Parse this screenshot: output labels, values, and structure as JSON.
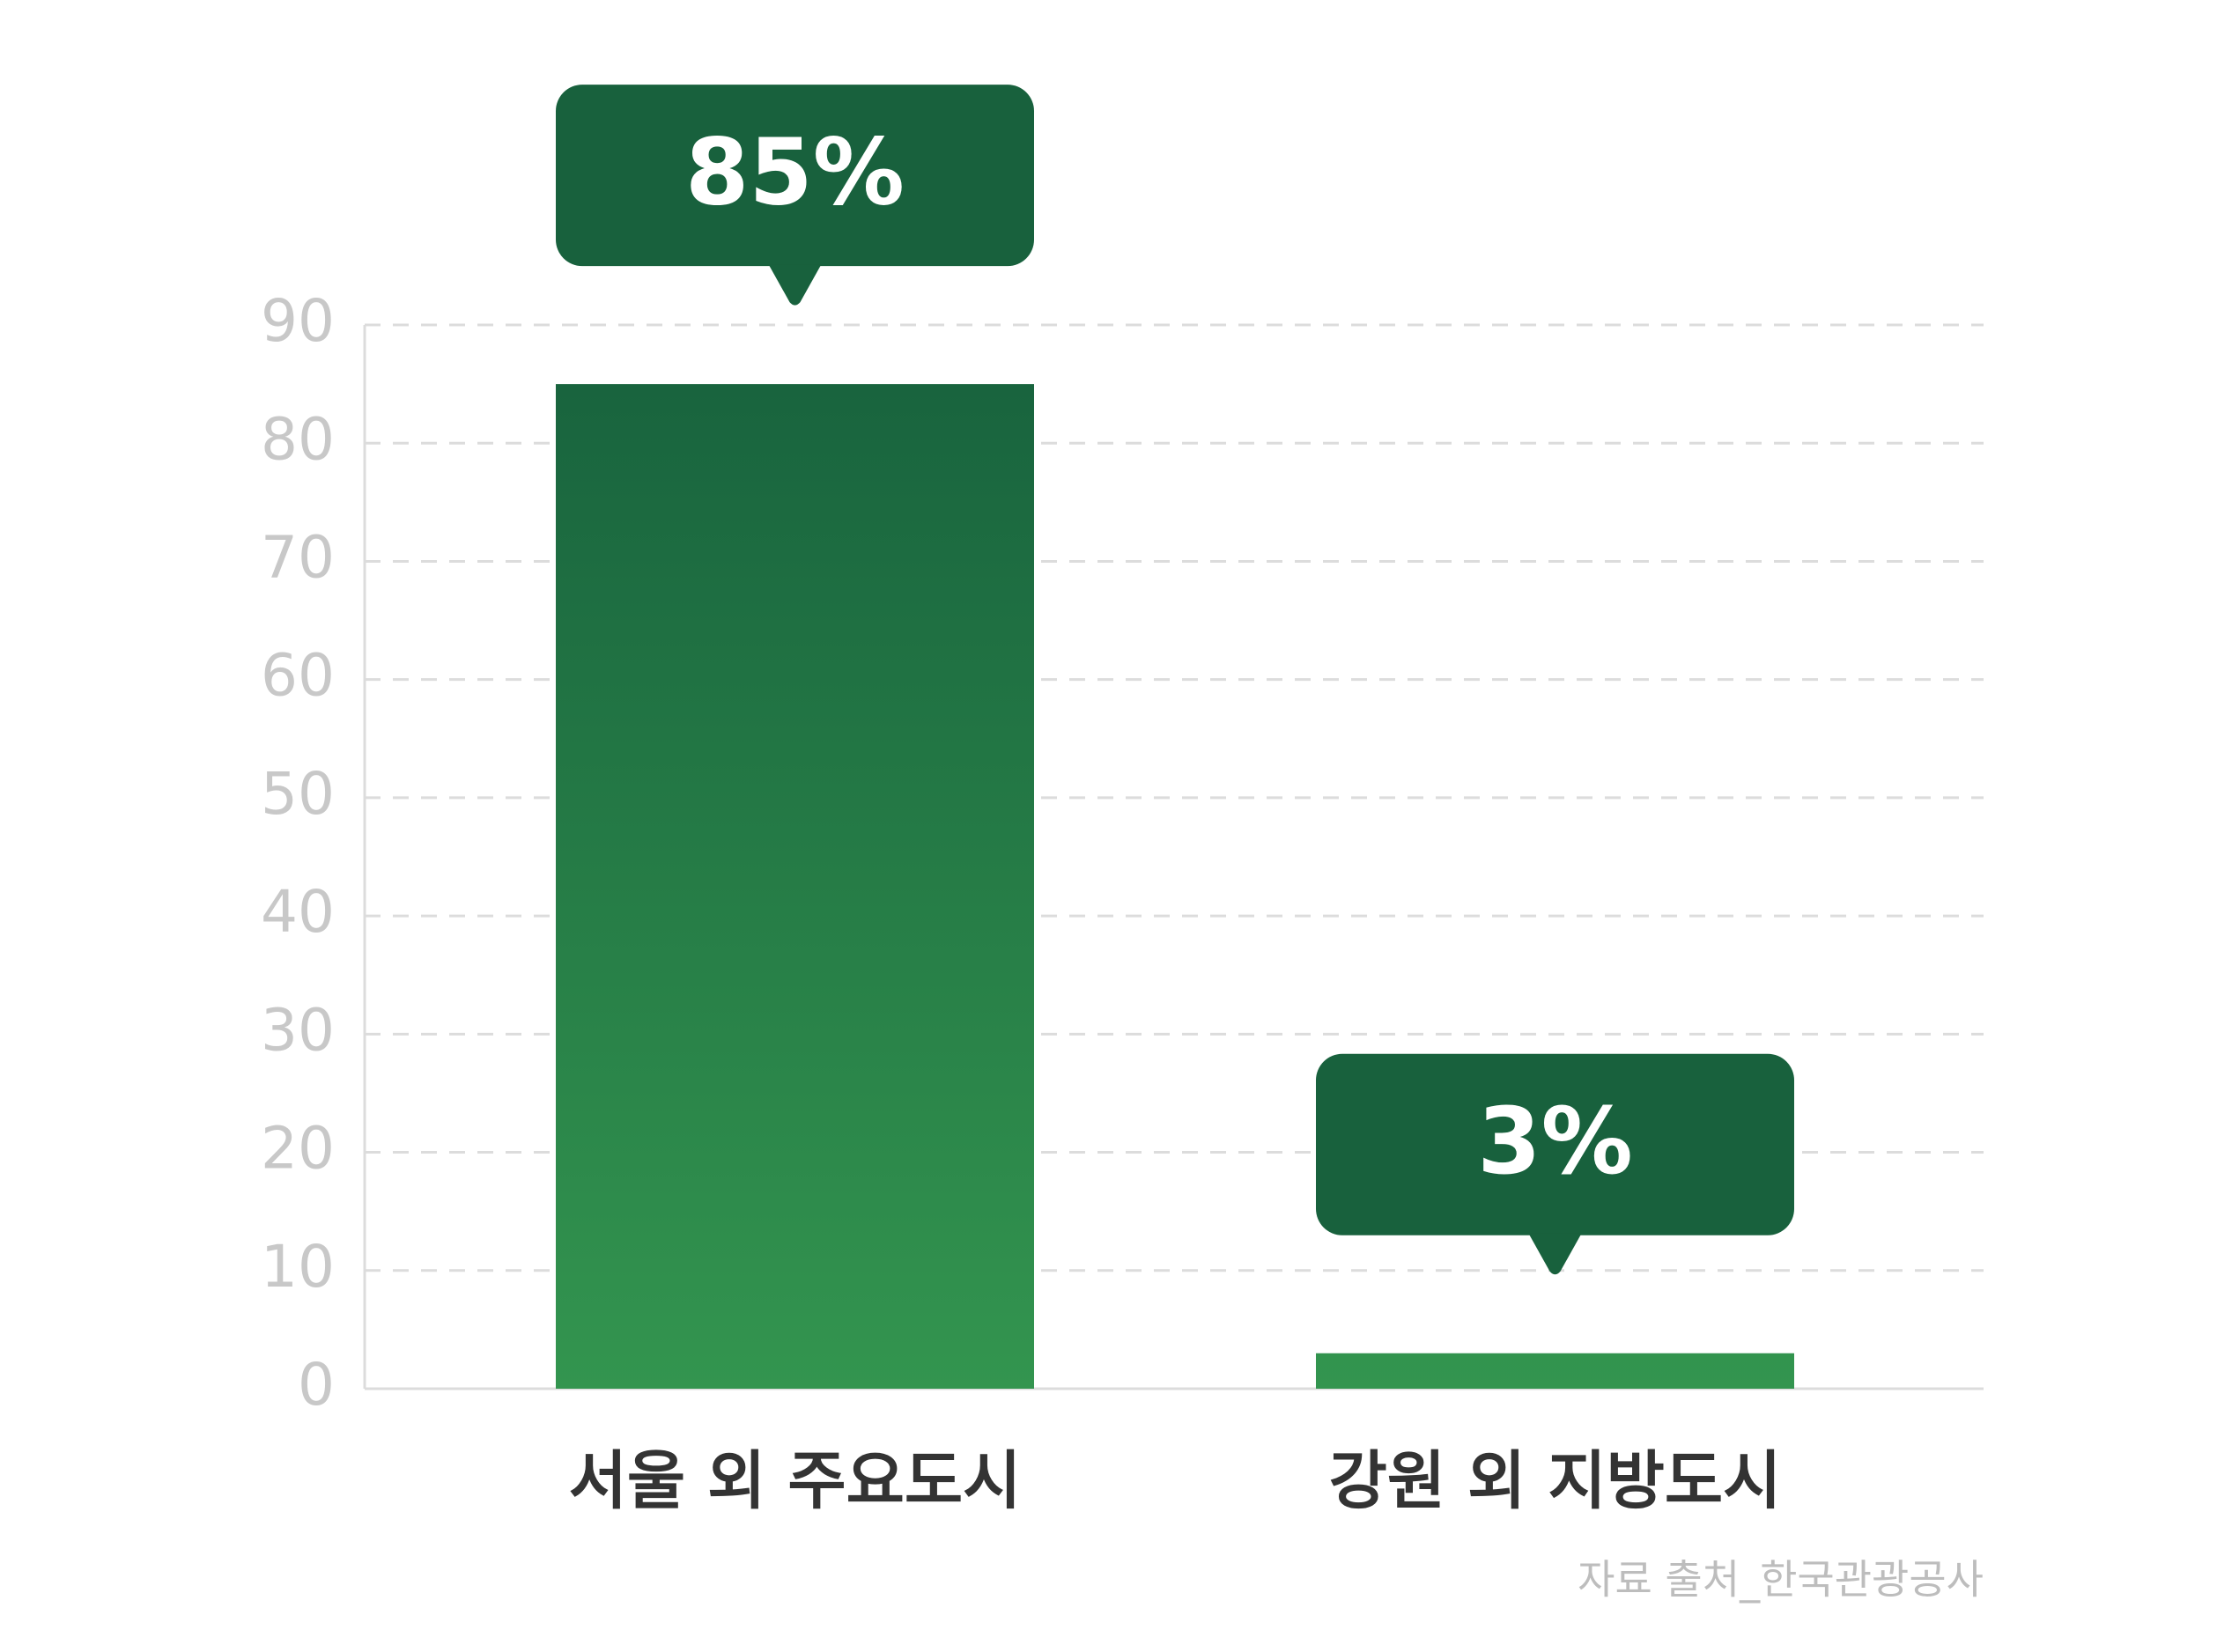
{
  "chart_data": {
    "type": "bar",
    "categories": [
      "서울 외 주요도시",
      "강원 외 지방도시"
    ],
    "values": [
      85,
      3
    ],
    "value_labels": [
      "85%",
      "3%"
    ],
    "color_top": "#17613d",
    "color_bottom": "#33954f",
    "callout_color": "#18613d",
    "ylim": [
      0,
      90
    ],
    "yticks": [
      0,
      10,
      20,
      30,
      40,
      50,
      60,
      70,
      80,
      90
    ],
    "grid": true,
    "source": "자료 출처_한국관광공사"
  }
}
